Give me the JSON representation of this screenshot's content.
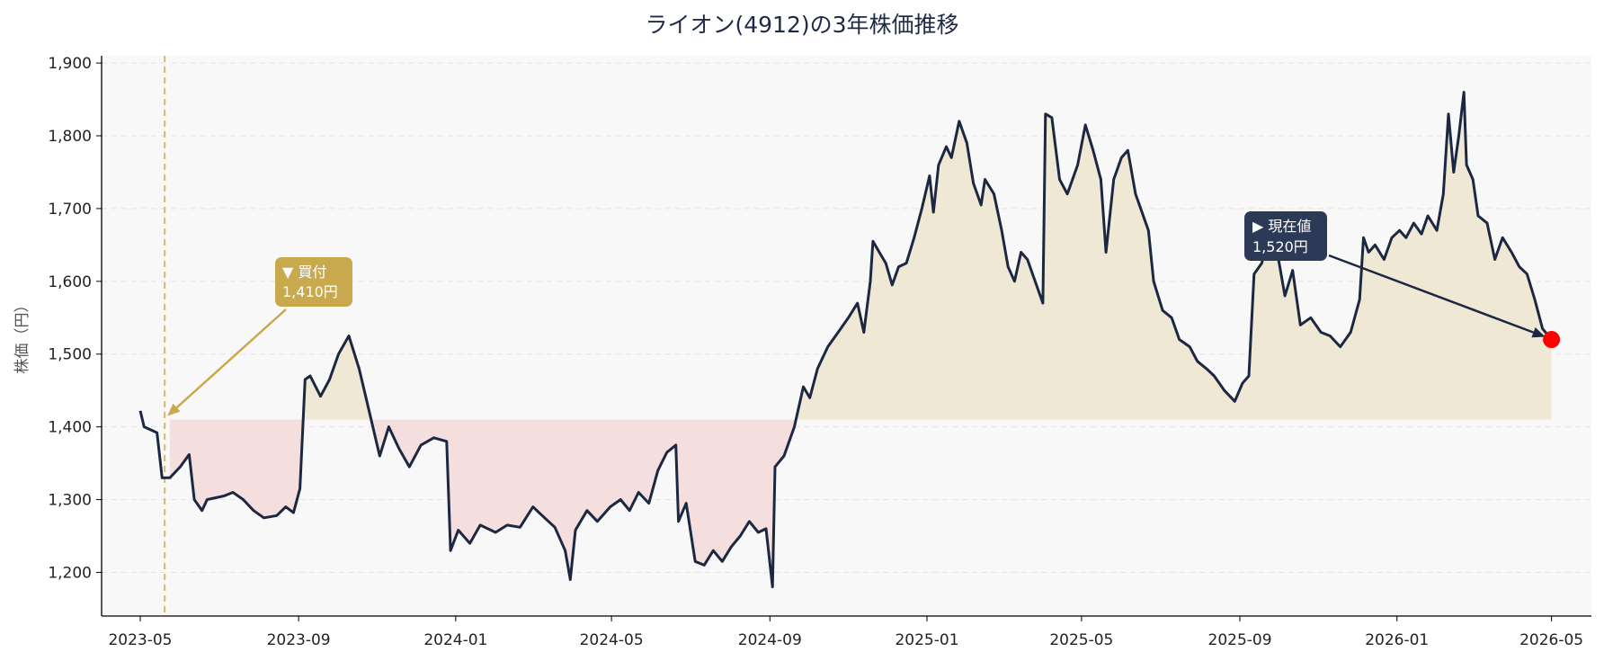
{
  "chart_data": {
    "type": "line",
    "title": "ライオン(4912)の3年株価推移",
    "xlabel": "",
    "ylabel": "株価（円）",
    "x_range": [
      "2023-04-01",
      "2026-06-01"
    ],
    "ylim": [
      1140,
      1910
    ],
    "y_ticks": [
      1200,
      1300,
      1400,
      1500,
      1600,
      1700,
      1800,
      1900
    ],
    "y_tick_labels": [
      "1,200",
      "1,300",
      "1,400",
      "1,500",
      "1,600",
      "1,700",
      "1,800",
      "1,900"
    ],
    "x_ticks": [
      "2023-05-01",
      "2023-09-01",
      "2024-01-01",
      "2024-05-01",
      "2024-09-01",
      "2025-01-01",
      "2025-05-01",
      "2025-09-01",
      "2026-01-01",
      "2026-05-01"
    ],
    "x_tick_labels": [
      "2023-05",
      "2023-09",
      "2024-01",
      "2024-05",
      "2024-09",
      "2025-01",
      "2025-05",
      "2025-09",
      "2026-01",
      "2026-05"
    ],
    "grid": "horizontal dashed",
    "baseline": 1410,
    "buy_date": "2023-05-20",
    "series": [
      {
        "name": "",
        "color": "#1c2841",
        "points": [
          [
            "2023-05-01",
            1422
          ],
          [
            "2023-05-04",
            1400
          ],
          [
            "2023-05-14",
            1392
          ],
          [
            "2023-05-18",
            1330
          ],
          [
            "2023-05-24",
            1330
          ],
          [
            "2023-06-01",
            1345
          ],
          [
            "2023-06-08",
            1362
          ],
          [
            "2023-06-12",
            1300
          ],
          [
            "2023-06-18",
            1285
          ],
          [
            "2023-06-22",
            1300
          ],
          [
            "2023-07-05",
            1305
          ],
          [
            "2023-07-12",
            1310
          ],
          [
            "2023-07-20",
            1300
          ],
          [
            "2023-07-28",
            1285
          ],
          [
            "2023-08-05",
            1275
          ],
          [
            "2023-08-15",
            1278
          ],
          [
            "2023-08-22",
            1290
          ],
          [
            "2023-08-28",
            1282
          ],
          [
            "2023-09-02",
            1315
          ],
          [
            "2023-09-06",
            1465
          ],
          [
            "2023-09-10",
            1470
          ],
          [
            "2023-09-18",
            1442
          ],
          [
            "2023-09-25",
            1465
          ],
          [
            "2023-10-02",
            1500
          ],
          [
            "2023-10-10",
            1525
          ],
          [
            "2023-10-18",
            1480
          ],
          [
            "2023-10-26",
            1420
          ],
          [
            "2023-11-03",
            1360
          ],
          [
            "2023-11-10",
            1400
          ],
          [
            "2023-11-18",
            1370
          ],
          [
            "2023-11-26",
            1345
          ],
          [
            "2023-12-05",
            1375
          ],
          [
            "2023-12-15",
            1385
          ],
          [
            "2023-12-25",
            1380
          ],
          [
            "2023-12-28",
            1230
          ],
          [
            "2024-01-03",
            1258
          ],
          [
            "2024-01-12",
            1240
          ],
          [
            "2024-01-20",
            1265
          ],
          [
            "2024-02-01",
            1255
          ],
          [
            "2024-02-10",
            1265
          ],
          [
            "2024-02-20",
            1262
          ],
          [
            "2024-03-01",
            1290
          ],
          [
            "2024-03-10",
            1275
          ],
          [
            "2024-03-18",
            1262
          ],
          [
            "2024-03-26",
            1230
          ],
          [
            "2024-03-30",
            1190
          ],
          [
            "2024-04-03",
            1258
          ],
          [
            "2024-04-12",
            1285
          ],
          [
            "2024-04-20",
            1270
          ],
          [
            "2024-04-30",
            1290
          ],
          [
            "2024-05-08",
            1300
          ],
          [
            "2024-05-15",
            1285
          ],
          [
            "2024-05-22",
            1310
          ],
          [
            "2024-05-30",
            1295
          ],
          [
            "2024-06-06",
            1340
          ],
          [
            "2024-06-13",
            1365
          ],
          [
            "2024-06-20",
            1375
          ],
          [
            "2024-06-22",
            1270
          ],
          [
            "2024-06-28",
            1295
          ],
          [
            "2024-07-05",
            1215
          ],
          [
            "2024-07-12",
            1210
          ],
          [
            "2024-07-19",
            1230
          ],
          [
            "2024-07-26",
            1215
          ],
          [
            "2024-08-02",
            1235
          ],
          [
            "2024-08-09",
            1250
          ],
          [
            "2024-08-16",
            1270
          ],
          [
            "2024-08-23",
            1255
          ],
          [
            "2024-08-29",
            1260
          ],
          [
            "2024-09-03",
            1180
          ],
          [
            "2024-09-05",
            1345
          ],
          [
            "2024-09-12",
            1360
          ],
          [
            "2024-09-20",
            1400
          ],
          [
            "2024-09-27",
            1455
          ],
          [
            "2024-10-02",
            1440
          ],
          [
            "2024-10-08",
            1480
          ],
          [
            "2024-10-16",
            1510
          ],
          [
            "2024-10-24",
            1530
          ],
          [
            "2024-11-01",
            1550
          ],
          [
            "2024-11-08",
            1570
          ],
          [
            "2024-11-13",
            1530
          ],
          [
            "2024-11-18",
            1600
          ],
          [
            "2024-11-20",
            1655
          ],
          [
            "2024-11-25",
            1640
          ],
          [
            "2024-11-30",
            1625
          ],
          [
            "2024-12-05",
            1595
          ],
          [
            "2024-12-10",
            1620
          ],
          [
            "2024-12-16",
            1625
          ],
          [
            "2024-12-22",
            1660
          ],
          [
            "2024-12-28",
            1700
          ],
          [
            "2025-01-03",
            1745
          ],
          [
            "2025-01-06",
            1695
          ],
          [
            "2025-01-10",
            1760
          ],
          [
            "2025-01-16",
            1785
          ],
          [
            "2025-01-20",
            1770
          ],
          [
            "2025-01-26",
            1820
          ],
          [
            "2025-02-01",
            1790
          ],
          [
            "2025-02-06",
            1735
          ],
          [
            "2025-02-12",
            1705
          ],
          [
            "2025-02-15",
            1740
          ],
          [
            "2025-02-22",
            1720
          ],
          [
            "2025-02-28",
            1670
          ],
          [
            "2025-03-05",
            1620
          ],
          [
            "2025-03-10",
            1600
          ],
          [
            "2025-03-15",
            1640
          ],
          [
            "2025-03-20",
            1630
          ],
          [
            "2025-03-26",
            1600
          ],
          [
            "2025-04-01",
            1570
          ],
          [
            "2025-04-03",
            1830
          ],
          [
            "2025-04-08",
            1825
          ],
          [
            "2025-04-14",
            1740
          ],
          [
            "2025-04-20",
            1720
          ],
          [
            "2025-04-28",
            1760
          ],
          [
            "2025-05-04",
            1815
          ],
          [
            "2025-05-10",
            1780
          ],
          [
            "2025-05-16",
            1740
          ],
          [
            "2025-05-20",
            1640
          ],
          [
            "2025-05-26",
            1740
          ],
          [
            "2025-06-01",
            1770
          ],
          [
            "2025-06-06",
            1780
          ],
          [
            "2025-06-12",
            1720
          ],
          [
            "2025-06-16",
            1700
          ],
          [
            "2025-06-22",
            1670
          ],
          [
            "2025-06-26",
            1600
          ],
          [
            "2025-07-03",
            1560
          ],
          [
            "2025-07-10",
            1550
          ],
          [
            "2025-07-16",
            1520
          ],
          [
            "2025-07-24",
            1510
          ],
          [
            "2025-07-30",
            1490
          ],
          [
            "2025-08-06",
            1480
          ],
          [
            "2025-08-12",
            1470
          ],
          [
            "2025-08-20",
            1450
          ],
          [
            "2025-08-28",
            1435
          ],
          [
            "2025-09-03",
            1460
          ],
          [
            "2025-09-08",
            1470
          ],
          [
            "2025-09-12",
            1610
          ],
          [
            "2025-09-18",
            1625
          ],
          [
            "2025-09-24",
            1670
          ],
          [
            "2025-09-30",
            1640
          ],
          [
            "2025-10-06",
            1580
          ],
          [
            "2025-10-12",
            1615
          ],
          [
            "2025-10-18",
            1540
          ],
          [
            "2025-10-26",
            1550
          ],
          [
            "2025-11-03",
            1530
          ],
          [
            "2025-11-10",
            1525
          ],
          [
            "2025-11-18",
            1510
          ],
          [
            "2025-11-26",
            1530
          ],
          [
            "2025-12-03",
            1575
          ],
          [
            "2025-12-06",
            1660
          ],
          [
            "2025-12-10",
            1640
          ],
          [
            "2025-12-15",
            1650
          ],
          [
            "2025-12-22",
            1630
          ],
          [
            "2025-12-28",
            1660
          ],
          [
            "2026-01-03",
            1670
          ],
          [
            "2026-01-08",
            1660
          ],
          [
            "2026-01-14",
            1680
          ],
          [
            "2026-01-20",
            1665
          ],
          [
            "2026-01-25",
            1690
          ],
          [
            "2026-02-01",
            1670
          ],
          [
            "2026-02-06",
            1720
          ],
          [
            "2026-02-10",
            1830
          ],
          [
            "2026-02-14",
            1750
          ],
          [
            "2026-02-18",
            1800
          ],
          [
            "2026-02-22",
            1860
          ],
          [
            "2026-02-24",
            1760
          ],
          [
            "2026-03-01",
            1740
          ],
          [
            "2026-03-05",
            1690
          ],
          [
            "2026-03-12",
            1680
          ],
          [
            "2026-03-18",
            1630
          ],
          [
            "2026-03-24",
            1660
          ],
          [
            "2026-03-31",
            1640
          ],
          [
            "2026-04-06",
            1620
          ],
          [
            "2026-04-12",
            1610
          ],
          [
            "2026-04-18",
            1575
          ],
          [
            "2026-04-24",
            1535
          ],
          [
            "2026-05-01",
            1520
          ]
        ]
      }
    ],
    "annotations": [
      {
        "label": "▼ 買付",
        "value_text": "1,410円",
        "x": "2023-05-20",
        "y": 1410,
        "color": "#c9a94e"
      },
      {
        "label": "▶ 現在値",
        "value_text": "1,520円",
        "x": "2026-05-01",
        "y": 1520,
        "color": "#2c3a57"
      }
    ],
    "current_marker_color": "#ff0000",
    "fill_above_color": "#efe8d5",
    "fill_below_color": "#f4dede"
  }
}
